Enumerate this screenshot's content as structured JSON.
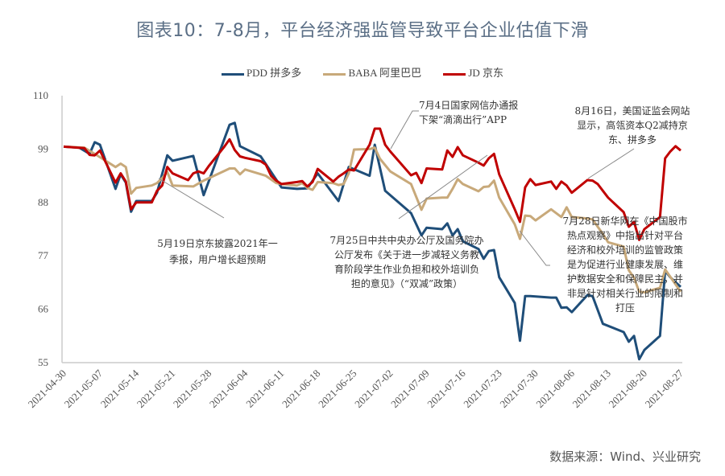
{
  "title": "图表10：7-8月，平台经济强监管导致平台企业估值下滑",
  "source": "数据来源：Wind、兴业研究",
  "chart_data": {
    "type": "line",
    "title": "图表10：7-8月，平台经济强监管导致平台企业估值下滑",
    "xlabel": "",
    "ylabel": "",
    "ylim": [
      55,
      110
    ],
    "yticks": [
      55,
      66,
      77,
      88,
      99,
      110
    ],
    "xlim": [
      "2021-04-30",
      "2021-08-27"
    ],
    "xticks": [
      "2021-04-30",
      "2021-05-07",
      "2021-05-14",
      "2021-05-21",
      "2021-05-28",
      "2021-06-04",
      "2021-06-11",
      "2021-06-18",
      "2021-06-25",
      "2021-07-02",
      "2021-07-09",
      "2021-07-16",
      "2021-07-23",
      "2021-07-30",
      "2021-08-06",
      "2021-08-13",
      "2021-08-20",
      "2021-08-27"
    ],
    "grid": false,
    "legend": "top",
    "series": [
      {
        "name": "PDD 拼多多",
        "color": "#1f4e79",
        "points": [
          [
            "2021-04-30",
            99.5
          ],
          [
            "2021-05-03",
            99.3
          ],
          [
            "2021-05-05",
            98
          ],
          [
            "2021-05-06",
            100.4
          ],
          [
            "2021-05-07",
            99.9
          ],
          [
            "2021-05-10",
            90.8
          ],
          [
            "2021-05-11",
            93.8
          ],
          [
            "2021-05-12",
            92.1
          ],
          [
            "2021-05-13",
            86.1
          ],
          [
            "2021-05-14",
            88.3
          ],
          [
            "2021-05-17",
            88.3
          ],
          [
            "2021-05-18",
            90
          ],
          [
            "2021-05-20",
            97.7
          ],
          [
            "2021-05-21",
            96.6
          ],
          [
            "2021-05-25",
            97.6
          ],
          [
            "2021-05-27",
            89.5
          ],
          [
            "2021-06-01",
            104
          ],
          [
            "2021-06-02",
            104.4
          ],
          [
            "2021-06-03",
            99.6
          ],
          [
            "2021-06-07",
            97.5
          ],
          [
            "2021-06-11",
            91.1
          ],
          [
            "2021-06-14",
            90.8
          ],
          [
            "2021-06-16",
            90.9
          ],
          [
            "2021-06-18",
            94
          ],
          [
            "2021-06-22",
            88.3
          ],
          [
            "2021-06-24",
            95.3
          ],
          [
            "2021-06-28",
            93.5
          ],
          [
            "2021-06-29",
            99.9
          ],
          [
            "2021-07-01",
            90.4
          ],
          [
            "2021-07-06",
            85.8
          ],
          [
            "2021-07-08",
            81.2
          ],
          [
            "2021-07-09",
            82.8
          ],
          [
            "2021-07-12",
            82.5
          ],
          [
            "2021-07-13",
            83.7
          ],
          [
            "2021-07-14",
            81.2
          ],
          [
            "2021-07-15",
            82.5
          ],
          [
            "2021-07-16",
            80
          ],
          [
            "2021-07-19",
            78.4
          ],
          [
            "2021-07-20",
            76.4
          ],
          [
            "2021-07-21",
            78
          ],
          [
            "2021-07-22",
            78.2
          ],
          [
            "2021-07-23",
            72.6
          ],
          [
            "2021-07-26",
            67.3
          ],
          [
            "2021-07-27",
            59.5
          ],
          [
            "2021-07-28",
            68.7
          ],
          [
            "2021-07-29",
            68.7
          ],
          [
            "2021-08-02",
            68.4
          ],
          [
            "2021-08-03",
            68.4
          ],
          [
            "2021-08-04",
            66.3
          ],
          [
            "2021-08-05",
            66.4
          ],
          [
            "2021-08-06",
            65.4
          ],
          [
            "2021-08-09",
            68.9
          ],
          [
            "2021-08-10",
            68.7
          ],
          [
            "2021-08-12",
            63
          ],
          [
            "2021-08-16",
            61.3
          ],
          [
            "2021-08-17",
            59.3
          ],
          [
            "2021-08-18",
            60.5
          ],
          [
            "2021-08-19",
            55.7
          ],
          [
            "2021-08-20",
            57.6
          ],
          [
            "2021-08-23",
            60.5
          ],
          [
            "2021-08-24",
            73.9
          ],
          [
            "2021-08-25",
            72.6
          ],
          [
            "2021-08-27",
            70.6
          ]
        ]
      },
      {
        "name": "BABA 阿里巴巴",
        "color": "#c8a97a",
        "points": [
          [
            "2021-04-30",
            99.5
          ],
          [
            "2021-05-04",
            99.3
          ],
          [
            "2021-05-06",
            98
          ],
          [
            "2021-05-10",
            95.3
          ],
          [
            "2021-05-11",
            96
          ],
          [
            "2021-05-12",
            95.3
          ],
          [
            "2021-05-13",
            89.8
          ],
          [
            "2021-05-14",
            91
          ],
          [
            "2021-05-17",
            91.5
          ],
          [
            "2021-05-18",
            92
          ],
          [
            "2021-05-19",
            93
          ],
          [
            "2021-05-20",
            94.3
          ],
          [
            "2021-05-21",
            91.5
          ],
          [
            "2021-05-25",
            91.3
          ],
          [
            "2021-05-27",
            92.5
          ],
          [
            "2021-05-31",
            94.5
          ],
          [
            "2021-06-01",
            95
          ],
          [
            "2021-06-02",
            95
          ],
          [
            "2021-06-03",
            93.8
          ],
          [
            "2021-06-04",
            94.8
          ],
          [
            "2021-06-08",
            93.5
          ],
          [
            "2021-06-10",
            92
          ],
          [
            "2021-06-11",
            91.8
          ],
          [
            "2021-06-14",
            91.5
          ],
          [
            "2021-06-15",
            92
          ],
          [
            "2021-06-16",
            91
          ],
          [
            "2021-06-17",
            90.6
          ],
          [
            "2021-06-18",
            92.2
          ],
          [
            "2021-06-21",
            92
          ],
          [
            "2021-06-22",
            91.6
          ],
          [
            "2021-06-23",
            91.8
          ],
          [
            "2021-06-24",
            94
          ],
          [
            "2021-06-25",
            98.9
          ],
          [
            "2021-06-28",
            99
          ],
          [
            "2021-06-29",
            99.3
          ],
          [
            "2021-06-30",
            97
          ],
          [
            "2021-07-02",
            94.4
          ],
          [
            "2021-07-06",
            91.8
          ],
          [
            "2021-07-08",
            86.5
          ],
          [
            "2021-07-09",
            88.8
          ],
          [
            "2021-07-12",
            89
          ],
          [
            "2021-07-13",
            89
          ],
          [
            "2021-07-14",
            90.8
          ],
          [
            "2021-07-15",
            92.8
          ],
          [
            "2021-07-16",
            91.8
          ],
          [
            "2021-07-19",
            90.3
          ],
          [
            "2021-07-20",
            91.2
          ],
          [
            "2021-07-21",
            91.3
          ],
          [
            "2021-07-22",
            92.5
          ],
          [
            "2021-07-23",
            89
          ],
          [
            "2021-07-26",
            83.5
          ],
          [
            "2021-07-27",
            80.5
          ],
          [
            "2021-07-28",
            85.3
          ],
          [
            "2021-07-29",
            85.2
          ],
          [
            "2021-07-30",
            84.3
          ],
          [
            "2021-08-02",
            86.6
          ],
          [
            "2021-08-04",
            85
          ],
          [
            "2021-08-05",
            87
          ],
          [
            "2021-08-06",
            85
          ],
          [
            "2021-08-09",
            84.7
          ],
          [
            "2021-08-10",
            84.5
          ],
          [
            "2021-08-11",
            83
          ],
          [
            "2021-08-12",
            81.5
          ],
          [
            "2021-08-13",
            79.8
          ],
          [
            "2021-08-16",
            78.9
          ],
          [
            "2021-08-17",
            74
          ],
          [
            "2021-08-18",
            72.5
          ],
          [
            "2021-08-19",
            69.6
          ],
          [
            "2021-08-20",
            69.5
          ],
          [
            "2021-08-23",
            70.4
          ],
          [
            "2021-08-24",
            74.2
          ],
          [
            "2021-08-25",
            72.7
          ],
          [
            "2021-08-27",
            69.6
          ]
        ]
      },
      {
        "name": "JD 京东",
        "color": "#c00000",
        "points": [
          [
            "2021-04-30",
            99.5
          ],
          [
            "2021-05-04",
            99.2
          ],
          [
            "2021-05-05",
            97.8
          ],
          [
            "2021-05-06",
            97.7
          ],
          [
            "2021-05-07",
            98.7
          ],
          [
            "2021-05-10",
            92.1
          ],
          [
            "2021-05-11",
            94
          ],
          [
            "2021-05-12",
            92.3
          ],
          [
            "2021-05-13",
            86.6
          ],
          [
            "2021-05-14",
            88
          ],
          [
            "2021-05-17",
            88
          ],
          [
            "2021-05-18",
            90.4
          ],
          [
            "2021-05-19",
            91.5
          ],
          [
            "2021-05-20",
            95.3
          ],
          [
            "2021-05-21",
            94
          ],
          [
            "2021-05-24",
            92.6
          ],
          [
            "2021-05-25",
            94
          ],
          [
            "2021-05-26",
            94.4
          ],
          [
            "2021-05-27",
            94
          ],
          [
            "2021-05-28",
            95.5
          ],
          [
            "2021-05-31",
            99.5
          ],
          [
            "2021-06-01",
            101
          ],
          [
            "2021-06-02",
            98.8
          ],
          [
            "2021-06-03",
            97.5
          ],
          [
            "2021-06-04",
            97.2
          ],
          [
            "2021-06-07",
            96.5
          ],
          [
            "2021-06-08",
            95.8
          ],
          [
            "2021-06-09",
            93.5
          ],
          [
            "2021-06-10",
            92.5
          ],
          [
            "2021-06-11",
            91.8
          ],
          [
            "2021-06-14",
            92.2
          ],
          [
            "2021-06-15",
            92.4
          ],
          [
            "2021-06-16",
            91.3
          ],
          [
            "2021-06-17",
            92.2
          ],
          [
            "2021-06-18",
            94.9
          ],
          [
            "2021-06-21",
            92.3
          ],
          [
            "2021-06-22",
            93.3
          ],
          [
            "2021-06-23",
            94
          ],
          [
            "2021-06-24",
            94.8
          ],
          [
            "2021-06-25",
            94.6
          ],
          [
            "2021-06-28",
            99.9
          ],
          [
            "2021-06-29",
            103.2
          ],
          [
            "2021-06-30",
            103.2
          ],
          [
            "2021-07-01",
            99.9
          ],
          [
            "2021-07-02",
            98.5
          ],
          [
            "2021-07-06",
            93.6
          ],
          [
            "2021-07-07",
            94.1
          ],
          [
            "2021-07-08",
            92
          ],
          [
            "2021-07-09",
            95
          ],
          [
            "2021-07-12",
            94.8
          ],
          [
            "2021-07-13",
            98.7
          ],
          [
            "2021-07-14",
            97.4
          ],
          [
            "2021-07-15",
            99.4
          ],
          [
            "2021-07-16",
            97.7
          ],
          [
            "2021-07-19",
            96.2
          ],
          [
            "2021-07-20",
            95.6
          ],
          [
            "2021-07-21",
            97.1
          ],
          [
            "2021-07-22",
            98
          ],
          [
            "2021-07-23",
            93.8
          ],
          [
            "2021-07-26",
            86.6
          ],
          [
            "2021-07-27",
            84
          ],
          [
            "2021-07-28",
            91.1
          ],
          [
            "2021-07-29",
            92.8
          ],
          [
            "2021-07-30",
            91.6
          ],
          [
            "2021-08-02",
            92.3
          ],
          [
            "2021-08-03",
            90.8
          ],
          [
            "2021-08-04",
            92.3
          ],
          [
            "2021-08-05",
            91.5
          ],
          [
            "2021-08-06",
            90
          ],
          [
            "2021-08-09",
            92.6
          ],
          [
            "2021-08-10",
            92.5
          ],
          [
            "2021-08-11",
            91.8
          ],
          [
            "2021-08-12",
            90.4
          ],
          [
            "2021-08-13",
            89
          ],
          [
            "2021-08-16",
            86
          ],
          [
            "2021-08-17",
            83
          ],
          [
            "2021-08-18",
            84
          ],
          [
            "2021-08-19",
            80.3
          ],
          [
            "2021-08-20",
            82.5
          ],
          [
            "2021-08-23",
            85
          ],
          [
            "2021-08-24",
            97.1
          ],
          [
            "2021-08-25",
            98.5
          ],
          [
            "2021-08-26",
            99.6
          ],
          [
            "2021-08-27",
            98.7
          ]
        ]
      }
    ],
    "annotations": [
      {
        "lines": [
          "5月19日京东披露2021年一",
          "季报，用户增长超预期"
        ]
      },
      {
        "lines": [
          "7月4日国家网信办通报",
          "下架“滴滴出行”APP"
        ]
      },
      {
        "lines": [
          "7月25日中共中央办公厅及国务院办",
          "公厅发布《关于进一步减轻义务教",
          "育阶段学生作业负担和校外培训负",
          "担的意见》（“双减”政策）"
        ]
      },
      {
        "lines": [
          "8月16日，美国证监会网站",
          "显示，高瓴资本Q2减持京",
          "东、拼多多"
        ]
      },
      {
        "lines": [
          "7月28日新华网在《中国股市",
          "热点观察》中指出针对平台",
          "经济和校外培训的监管政策",
          "是为促进行业健康发展、维",
          "护数据安全和保障民主，并",
          "非是针对相关行业的限制和",
          "打压"
        ]
      }
    ]
  }
}
